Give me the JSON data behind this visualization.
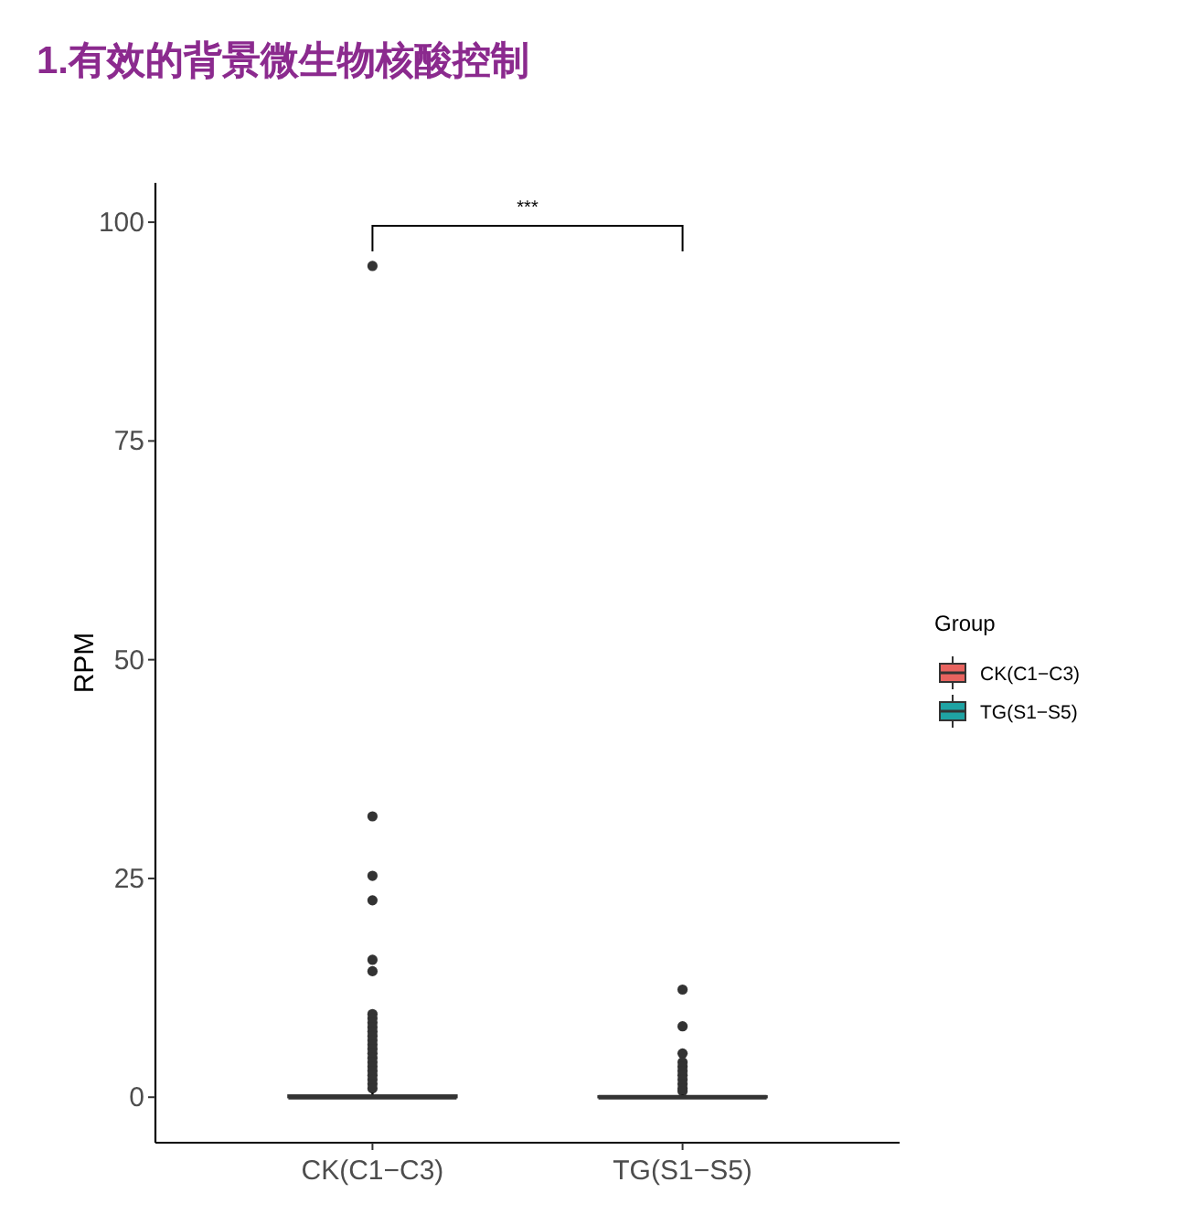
{
  "chart_data": {
    "type": "box",
    "title": "1.有效的背景微生物核酸控制",
    "ylabel": "RPM",
    "legend_title": "Group",
    "categories": [
      "CK(C1−C3)",
      "TG(S1−S5)"
    ],
    "series": [
      {
        "name": "CK(C1−C3)",
        "color": "#e8635f",
        "boxes": [
          {
            "low": 0,
            "q1": 0,
            "median": 0,
            "q3": 0.2,
            "high": 0.5,
            "outliers": [
              95,
              32.1,
              25.3,
              22.5,
              15.7,
              14.4,
              9.5,
              9,
              8.5,
              8,
              7.5,
              7,
              6.5,
              6,
              5.5,
              5,
              4.5,
              4,
              3.5,
              3,
              2.5,
              2,
              1.5,
              1
            ]
          },
          null
        ]
      },
      {
        "name": "TG(S1−S5)",
        "color": "#1fa3a3",
        "boxes": [
          null,
          {
            "low": 0,
            "q1": 0,
            "median": 0,
            "q3": 0.1,
            "high": 0.3,
            "outliers": [
              12.3,
              8.1,
              5,
              4,
              3.5,
              3,
              2.5,
              2,
              1.5,
              1,
              0.7
            ]
          }
        ]
      }
    ],
    "ylim": [
      -5.2,
      104.5
    ],
    "yticks": [
      0,
      25,
      50,
      75,
      100
    ],
    "grid": false,
    "legend": "right",
    "annotations": [
      "***"
    ]
  }
}
